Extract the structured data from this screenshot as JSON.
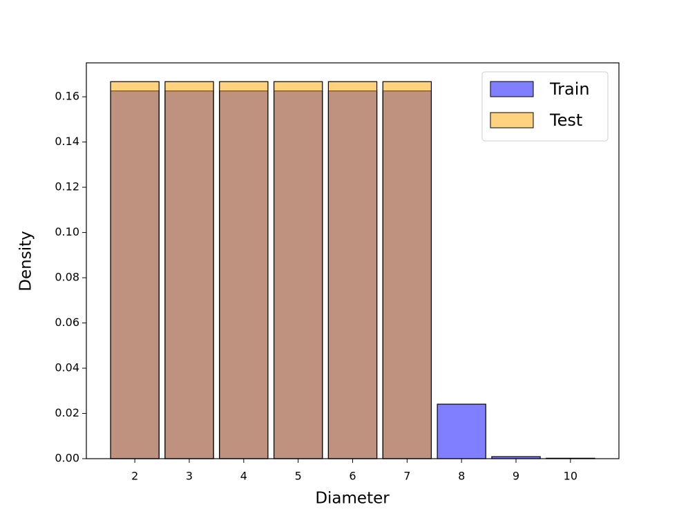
{
  "chart_data": {
    "type": "bar",
    "x_label": "Diameter",
    "y_label": "Density",
    "x": [
      2,
      3,
      4,
      5,
      6,
      7,
      8,
      9,
      10
    ],
    "series": [
      {
        "name": "Train",
        "color": "#0000ff",
        "values": [
          0.1626,
          0.1626,
          0.1626,
          0.1626,
          0.1626,
          0.1626,
          0.0241,
          0.0009,
          0.0002
        ]
      },
      {
        "name": "Test",
        "color": "#ffa500",
        "values": [
          0.1667,
          0.1667,
          0.1667,
          0.1667,
          0.1667,
          0.1667,
          0,
          0,
          0
        ]
      }
    ],
    "alpha": 0.5,
    "xlim": [
      1.11,
      10.89
    ],
    "xticks": [
      2,
      3,
      4,
      5,
      6,
      7,
      8,
      9,
      10
    ],
    "ylim": [
      0,
      0.175
    ],
    "yticks": [
      {
        "value": 0,
        "label": "0.00"
      },
      {
        "value": 0.02,
        "label": "0.02"
      },
      {
        "value": 0.04,
        "label": "0.04"
      },
      {
        "value": 0.06,
        "label": "0.06"
      },
      {
        "value": 0.08,
        "label": "0.08"
      },
      {
        "value": 0.1,
        "label": "0.10"
      },
      {
        "value": 0.12,
        "label": "0.12"
      },
      {
        "value": 0.14,
        "label": "0.14"
      },
      {
        "value": 0.16,
        "label": "0.16"
      }
    ],
    "legend": "upper right",
    "grid": false
  }
}
